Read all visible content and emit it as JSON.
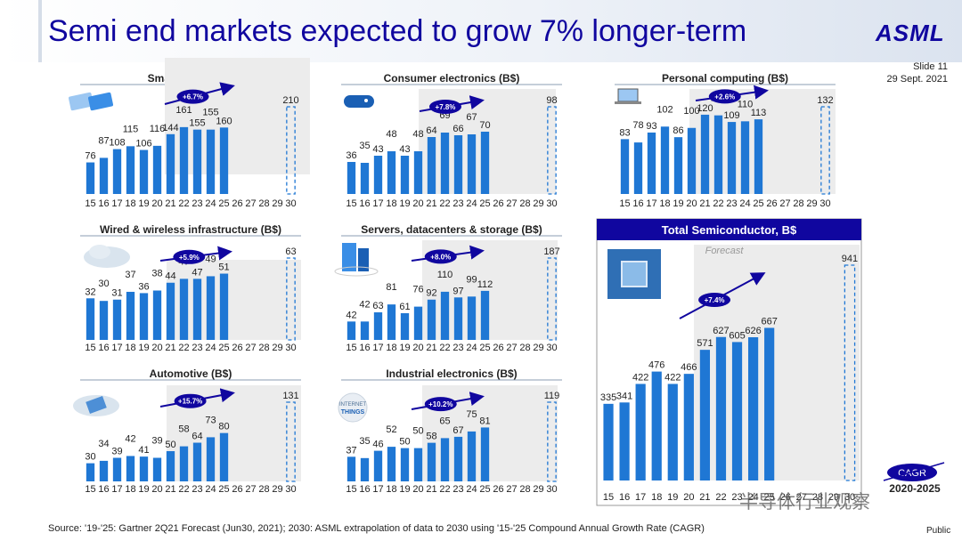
{
  "title": "Semi end markets expected to grow 7% longer-term",
  "logo": "ASML",
  "slide_label": "Slide 11",
  "slide_date": "29 Sept. 2021",
  "footer": "Source: '19-'25: Gartner 2Q21 Forecast (Jun30, 2021); 2030: ASML extrapolation of data to 2030 using '15-'25 Compound Annual Growth Rate (CAGR)",
  "public_label": "Public",
  "watermark": "半导体行业观察",
  "legend": {
    "cagr": "CAGR",
    "period": "2020-2025"
  },
  "colors": {
    "bar": "#1f77d4",
    "title_blue": "#10069f",
    "forecast_shade": "#ececec",
    "arrow": "#10069f"
  },
  "chart_data": [
    {
      "type": "bar",
      "title": "Smartphone (B$)",
      "icon": "smartphone-icon",
      "categories": [
        "15",
        "16",
        "17",
        "18",
        "19",
        "20",
        "21",
        "22",
        "23",
        "24",
        "25",
        "26",
        "27",
        "28",
        "29",
        "30"
      ],
      "values": [
        76,
        87,
        108,
        115,
        106,
        116,
        144,
        161,
        155,
        155,
        160,
        null,
        null,
        null,
        null,
        210
      ],
      "labels": [
        "76",
        "87",
        "108",
        "115",
        "106",
        "116",
        "144",
        "161",
        "155",
        "155",
        "160",
        "",
        "",
        "",
        "",
        "210"
      ],
      "cagr": "+6.7%"
    },
    {
      "type": "bar",
      "title": "Consumer electronics (B$)",
      "icon": "gamepad-icon",
      "categories": [
        "15",
        "16",
        "17",
        "18",
        "19",
        "20",
        "21",
        "22",
        "23",
        "24",
        "25",
        "26",
        "27",
        "28",
        "29",
        "30"
      ],
      "values": [
        36,
        35,
        43,
        48,
        43,
        48,
        64,
        69,
        66,
        67,
        70,
        null,
        null,
        null,
        null,
        98
      ],
      "labels": [
        "36",
        "35",
        "43",
        "48",
        "43",
        "48",
        "64",
        "69",
        "66",
        "67",
        "70",
        "",
        "",
        "",
        "",
        "98"
      ],
      "cagr": "+7.8%"
    },
    {
      "type": "bar",
      "title": "Personal computing (B$)",
      "icon": "laptop-icon",
      "categories": [
        "15",
        "16",
        "17",
        "18",
        "19",
        "20",
        "21",
        "22",
        "23",
        "24",
        "25",
        "26",
        "27",
        "28",
        "29",
        "30"
      ],
      "values": [
        83,
        78,
        93,
        102,
        86,
        100,
        120,
        119,
        109,
        110,
        113,
        null,
        null,
        null,
        null,
        132
      ],
      "labels": [
        "83",
        "78",
        "93",
        "102",
        "86",
        "100",
        "120",
        "119",
        "109",
        "110",
        "113",
        "",
        "",
        "",
        "",
        "132"
      ],
      "cagr": "+2.6%"
    },
    {
      "type": "bar",
      "title": "Wired & wireless infrastructure (B$)",
      "icon": "cloud-network-icon",
      "categories": [
        "15",
        "16",
        "17",
        "18",
        "19",
        "20",
        "21",
        "22",
        "23",
        "24",
        "25",
        "26",
        "27",
        "28",
        "29",
        "30"
      ],
      "values": [
        32,
        30,
        31,
        37,
        36,
        38,
        44,
        47,
        47,
        49,
        51,
        null,
        null,
        null,
        null,
        63
      ],
      "labels": [
        "32",
        "30",
        "31",
        "37",
        "36",
        "38",
        "44",
        "47",
        "47",
        "49",
        "51",
        "",
        "",
        "",
        "",
        "63"
      ],
      "cagr": "+5.9%"
    },
    {
      "type": "bar",
      "title": "Servers, datacenters & storage (B$)",
      "icon": "server-icon",
      "categories": [
        "15",
        "16",
        "17",
        "18",
        "19",
        "20",
        "21",
        "22",
        "23",
        "24",
        "25",
        "26",
        "27",
        "28",
        "29",
        "30"
      ],
      "values": [
        42,
        42,
        63,
        81,
        61,
        76,
        92,
        110,
        97,
        99,
        112,
        null,
        null,
        null,
        null,
        187
      ],
      "labels": [
        "42",
        "42",
        "63",
        "81",
        "61",
        "76",
        "92",
        "110",
        "97",
        "99",
        "112",
        "",
        "",
        "",
        "",
        "187"
      ],
      "cagr": "+8.0%"
    },
    {
      "type": "bar",
      "title": "Total Semiconductor, B$",
      "icon": "chip-icon",
      "forecast_label": "Forecast",
      "categories": [
        "15",
        "16",
        "17",
        "18",
        "19",
        "20",
        "21",
        "22",
        "23",
        "24",
        "25",
        "26",
        "27",
        "28",
        "29",
        "30"
      ],
      "values": [
        335,
        341,
        422,
        476,
        422,
        466,
        571,
        627,
        605,
        626,
        667,
        null,
        null,
        null,
        null,
        941
      ],
      "labels": [
        "335",
        "341",
        "422",
        "476",
        "422",
        "466",
        "571",
        "627",
        "605",
        "626",
        "667",
        "",
        "",
        "",
        "",
        "941"
      ],
      "cagr": "+7.4%"
    },
    {
      "type": "bar",
      "title": "Automotive (B$)",
      "icon": "car-chip-icon",
      "categories": [
        "15",
        "16",
        "17",
        "18",
        "19",
        "20",
        "21",
        "22",
        "23",
        "24",
        "25",
        "26",
        "27",
        "28",
        "29",
        "30"
      ],
      "values": [
        30,
        34,
        39,
        42,
        41,
        39,
        50,
        58,
        64,
        73,
        80,
        null,
        null,
        null,
        null,
        131
      ],
      "labels": [
        "30",
        "34",
        "39",
        "42",
        "41",
        "39",
        "50",
        "58",
        "64",
        "73",
        "80",
        "",
        "",
        "",
        "",
        "131"
      ],
      "cagr": "+15.7%"
    },
    {
      "type": "bar",
      "title": "Industrial electronics (B$)",
      "icon": "iot-icon",
      "categories": [
        "15",
        "16",
        "17",
        "18",
        "19",
        "20",
        "21",
        "22",
        "23",
        "24",
        "25",
        "26",
        "27",
        "28",
        "29",
        "30"
      ],
      "values": [
        37,
        35,
        46,
        52,
        50,
        50,
        58,
        65,
        67,
        75,
        81,
        null,
        null,
        null,
        null,
        119
      ],
      "labels": [
        "37",
        "35",
        "46",
        "52",
        "50",
        "50",
        "58",
        "65",
        "67",
        "75",
        "81",
        "",
        "",
        "",
        "",
        "119"
      ],
      "cagr": "+10.2%"
    }
  ]
}
